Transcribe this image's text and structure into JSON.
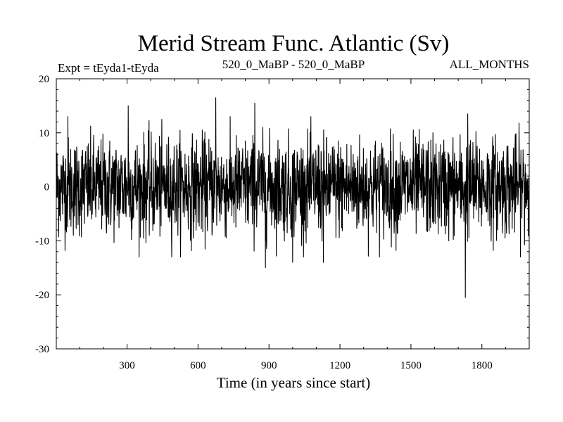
{
  "chart_data": {
    "type": "line",
    "title": "Merid Stream Func. Atlantic (Sv)",
    "subtitle_left": "Expt = tEyda1-tEyda",
    "subtitle_center": "520_0_MaBP - 520_0_MaBP",
    "subtitle_right": "ALL_MONTHS",
    "xlabel": "Time (in years since start)",
    "ylabel": "",
    "xlim": [
      1,
      2000
    ],
    "ylim": [
      -30,
      20
    ],
    "x_ticks": [
      300,
      600,
      900,
      1200,
      1500,
      1800
    ],
    "x_tick_labels": [
      "300",
      "600",
      "900",
      "1200",
      "1500",
      "1800"
    ],
    "x_minor_step": 100,
    "y_ticks": [
      -30,
      -20,
      -10,
      0,
      10,
      20
    ],
    "y_tick_labels": [
      "-30",
      "-20",
      "-10",
      "0",
      "10",
      "20"
    ],
    "y_minor_step": 2,
    "series": [
      {
        "name": "Merid Stream Func. Atlantic",
        "color": "#000000",
        "n_points": 2000,
        "x_start": 1,
        "x_step": 1,
        "mean": 0,
        "std_dev": 4.5,
        "notable_points": [
          {
            "x": 675,
            "y": 16.5
          },
          {
            "x": 840,
            "y": 15.5
          },
          {
            "x": 305,
            "y": 15.0
          },
          {
            "x": 1740,
            "y": 13.5
          },
          {
            "x": 50,
            "y": 13.0
          },
          {
            "x": 885,
            "y": -15.0
          },
          {
            "x": 1000,
            "y": -14.0
          },
          {
            "x": 1130,
            "y": -14.0
          },
          {
            "x": 1730,
            "y": -20.5
          }
        ]
      }
    ],
    "grid": false,
    "legend": "none"
  }
}
